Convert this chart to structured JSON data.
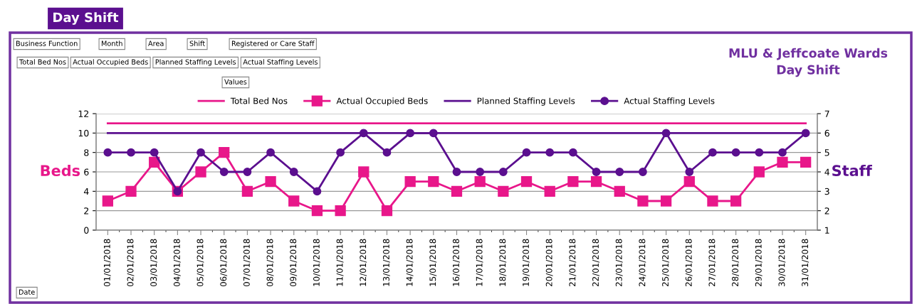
{
  "chart_data": {
    "type": "line",
    "title": "Day Shift",
    "subtitle": "MLU & Jeffcoate Wards\nDay Shift",
    "ylabel": "Beds",
    "y2label": "Staff",
    "categories": [
      "01/01/2018",
      "02/01/2018",
      "03/01/2018",
      "04/01/2018",
      "05/01/2018",
      "06/01/2018",
      "07/01/2018",
      "08/01/2018",
      "09/01/2018",
      "10/01/2018",
      "11/01/2018",
      "12/01/2018",
      "13/01/2018",
      "14/01/2018",
      "15/01/2018",
      "16/01/2018",
      "17/01/2018",
      "18/01/2018",
      "19/01/2018",
      "20/01/2018",
      "21/01/2018",
      "22/01/2018",
      "23/01/2018",
      "24/01/2018",
      "25/01/2018",
      "26/01/2018",
      "27/01/2018",
      "28/01/2018",
      "29/01/2018",
      "30/01/2018",
      "31/01/2018"
    ],
    "series": [
      {
        "name": "Total Bed Nos",
        "color": "#e8178a",
        "marker": "none",
        "values": [
          11,
          11,
          11,
          11,
          11,
          11,
          11,
          11,
          11,
          11,
          11,
          11,
          11,
          11,
          11,
          11,
          11,
          11,
          11,
          11,
          11,
          11,
          11,
          11,
          11,
          11,
          11,
          11,
          11,
          11,
          11
        ]
      },
      {
        "name": "Actual Occupied Beds",
        "color": "#e8178a",
        "marker": "square",
        "values": [
          3,
          4,
          7,
          4,
          6,
          8,
          4,
          5,
          3,
          2,
          2,
          6,
          2,
          5,
          5,
          4,
          5,
          4,
          5,
          4,
          5,
          5,
          4,
          3,
          3,
          5,
          3,
          3,
          6,
          7,
          7
        ]
      },
      {
        "name": "Planned Staffing Levels",
        "color": "#5b0f8f",
        "marker": "none",
        "axis": "y2",
        "values": [
          6,
          6,
          6,
          6,
          6,
          6,
          6,
          6,
          6,
          6,
          6,
          6,
          6,
          6,
          6,
          6,
          6,
          6,
          6,
          6,
          6,
          6,
          6,
          6,
          6,
          6,
          6,
          6,
          6,
          6,
          6
        ]
      },
      {
        "name": "Actual Staffing Levels",
        "color": "#5b0f8f",
        "marker": "circle",
        "axis": "y2",
        "values": [
          5,
          5,
          5,
          3,
          5,
          4,
          4,
          5,
          4,
          3,
          5,
          6,
          5,
          6,
          6,
          4,
          4,
          4,
          5,
          5,
          5,
          4,
          4,
          4,
          6,
          4,
          5,
          5,
          5,
          5,
          6
        ]
      }
    ],
    "ylim": [
      0,
      12
    ],
    "yticks": [
      0,
      2,
      4,
      6,
      8,
      10,
      12
    ],
    "y2lim": [
      1,
      7
    ],
    "y2ticks": [
      1,
      2,
      3,
      4,
      5,
      6,
      7
    ],
    "grid": "y",
    "legend": "top",
    "line_style": "solid",
    "annotations": [
      "Business Function",
      "Month",
      "Area",
      "Shift",
      "Registered or Care Staff",
      "Total Bed Nos",
      "Actual Occupied Beds",
      "Planned Staffing Levels",
      "Actual Staffing Levels",
      "Values",
      "Date"
    ]
  }
}
